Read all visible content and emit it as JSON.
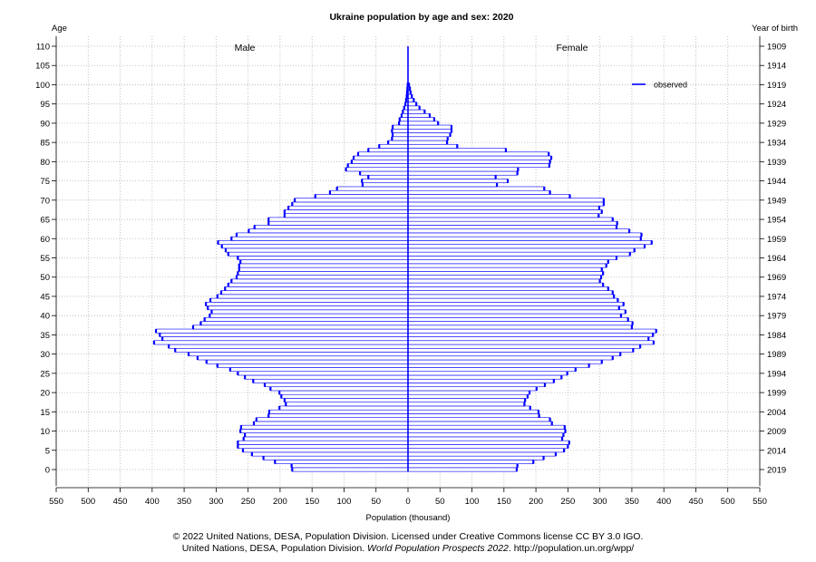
{
  "chart_data": {
    "type": "bar",
    "orientation": "horizontal",
    "title": "Ukraine population by age and sex: 2020",
    "ylabel": "Age",
    "ylabel_right": "Year of birth",
    "xlabel": "Population (thousand)",
    "xlim": [
      0,
      550
    ],
    "ylim": [
      0,
      110
    ],
    "grid": true,
    "x_ticks": [
      0,
      50,
      100,
      150,
      200,
      250,
      300,
      350,
      400,
      450,
      500,
      550
    ],
    "y_ticks": [
      0,
      5,
      10,
      15,
      20,
      25,
      30,
      35,
      40,
      45,
      50,
      55,
      60,
      65,
      70,
      75,
      80,
      85,
      90,
      95,
      100,
      105,
      110
    ],
    "y_right_ticks": [
      "2019",
      "2014",
      "2009",
      "2004",
      "1999",
      "1994",
      "1989",
      "1984",
      "1979",
      "1974",
      "1969",
      "1964",
      "1959",
      "1954",
      "1949",
      "1944",
      "1939",
      "1934",
      "1929",
      "1924",
      "1919",
      "1914",
      "1909"
    ],
    "legend_position": "top-right",
    "legend": [
      {
        "label": "observed",
        "color": "#0000ff"
      }
    ],
    "ages": [
      0,
      1,
      2,
      3,
      4,
      5,
      6,
      7,
      8,
      9,
      10,
      11,
      12,
      13,
      14,
      15,
      16,
      17,
      18,
      19,
      20,
      21,
      22,
      23,
      24,
      25,
      26,
      27,
      28,
      29,
      30,
      31,
      32,
      33,
      34,
      35,
      36,
      37,
      38,
      39,
      40,
      41,
      42,
      43,
      44,
      45,
      46,
      47,
      48,
      49,
      50,
      51,
      52,
      53,
      54,
      55,
      56,
      57,
      58,
      59,
      60,
      61,
      62,
      63,
      64,
      65,
      66,
      67,
      68,
      69,
      70,
      71,
      72,
      73,
      74,
      75,
      76,
      77,
      78,
      79,
      80,
      81,
      82,
      83,
      84,
      85,
      86,
      87,
      88,
      89,
      90,
      91,
      92,
      93,
      94,
      95,
      96,
      97,
      98,
      99,
      100
    ],
    "series": [
      {
        "name": "Male",
        "color": "#0000ff",
        "values": [
          181,
          182,
          208,
          226,
          244,
          258,
          266,
          266,
          257,
          255,
          262,
          261,
          241,
          237,
          218,
          217,
          201,
          191,
          193,
          198,
          201,
          215,
          224,
          242,
          255,
          266,
          278,
          298,
          315,
          329,
          343,
          364,
          374,
          397,
          384,
          388,
          394,
          336,
          324,
          318,
          310,
          307,
          313,
          316,
          309,
          298,
          292,
          286,
          281,
          276,
          268,
          266,
          264,
          264,
          262,
          266,
          281,
          285,
          291,
          297,
          276,
          268,
          249,
          240,
          218,
          218,
          193,
          193,
          187,
          181,
          177,
          145,
          122,
          111,
          71,
          72,
          62,
          75,
          97,
          94,
          88,
          85,
          78,
          62,
          45,
          31,
          25,
          24,
          25,
          24,
          14,
          13,
          10,
          8,
          6,
          4,
          3,
          2,
          1.5,
          1,
          0.5
        ]
      },
      {
        "name": "Female",
        "color": "#0000ff",
        "values": [
          170,
          171,
          196,
          212,
          231,
          244,
          250,
          252,
          241,
          243,
          246,
          245,
          225,
          222,
          205,
          204,
          191,
          182,
          183,
          187,
          190,
          201,
          214,
          228,
          240,
          249,
          262,
          283,
          303,
          320,
          332,
          352,
          363,
          384,
          376,
          383,
          388,
          350,
          351,
          344,
          333,
          340,
          330,
          337,
          328,
          322,
          320,
          313,
          305,
          300,
          302,
          305,
          303,
          310,
          313,
          326,
          347,
          354,
          370,
          381,
          364,
          365,
          346,
          326,
          327,
          320,
          298,
          303,
          299,
          306,
          306,
          253,
          222,
          213,
          139,
          156,
          137,
          171,
          172,
          221,
          222,
          224,
          220,
          153,
          77,
          61,
          62,
          66,
          68,
          68,
          47,
          41,
          34,
          26,
          18,
          13,
          9,
          6,
          4,
          3,
          1.5
        ]
      }
    ]
  },
  "footer": {
    "line1": "© 2022 United Nations, DESA, Population Division. Licensed under Creative Commons license CC BY 3.0 IGO.",
    "line2_prefix": "United Nations, DESA, Population Division. ",
    "line2_italic": "World Population Prospects 2022",
    "line2_suffix": ". http://population.un.org/wpp/"
  }
}
